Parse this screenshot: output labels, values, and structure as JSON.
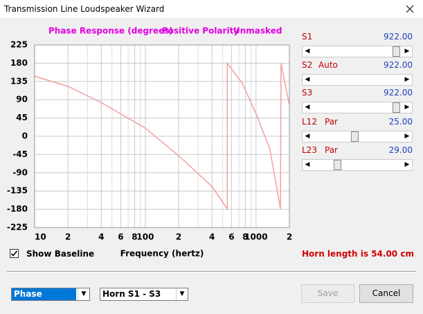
{
  "window": {
    "title": "Transmission Line Loudspeaker Wizard"
  },
  "chart_data": {
    "type": "line",
    "title": "Phase Response (degrees)",
    "annotations": [
      "Positive Polarity",
      "Unmasked"
    ],
    "x_label": "Frequency (hertz)",
    "color": "#f4a3a3",
    "log_x": true,
    "grid": true,
    "x": [
      10,
      20,
      40,
      60,
      100,
      200,
      400,
      550,
      550,
      750,
      1000,
      1330,
      1660,
      1680,
      2000
    ],
    "values": [
      148,
      123,
      83,
      55,
      20,
      -48,
      -124,
      -179,
      180,
      131,
      55,
      -31,
      -179,
      180,
      77
    ],
    "xlim": [
      10,
      2000
    ],
    "xticks": [
      10,
      {
        "value": 20,
        "label": "2"
      },
      {
        "value": 40,
        "label": "4"
      },
      {
        "value": 60,
        "label": "6"
      },
      {
        "value": 80,
        "label": "8"
      },
      100,
      {
        "value": 200,
        "label": "2"
      },
      {
        "value": 400,
        "label": "4"
      },
      {
        "value": 600,
        "label": "6"
      },
      {
        "value": 800,
        "label": "8"
      },
      1000,
      {
        "value": 2000,
        "label": "2"
      }
    ],
    "xminor": [
      30,
      50,
      70,
      90,
      300,
      500,
      700,
      900
    ],
    "ylim": [
      -225,
      225
    ],
    "yticks": [
      225,
      180,
      135,
      90,
      45,
      0,
      -45,
      -90,
      -135,
      -180,
      -225
    ]
  },
  "controls": {
    "sliders": [
      {
        "label": "S1",
        "value": "922.00"
      },
      {
        "label": "S2",
        "mode": "Auto",
        "value": "922.00"
      },
      {
        "label": "S3",
        "value": "922.00"
      },
      {
        "label": "L12",
        "mode": "Par",
        "value": "25.00"
      },
      {
        "label": "L23",
        "mode": "Par",
        "value": "29.00"
      }
    ],
    "show_baseline": {
      "label": "Show Baseline",
      "checked": true
    },
    "status": "Horn length is 54.00 cm",
    "dropdowns": [
      "Phase",
      "Horn S1 - S3"
    ],
    "buttons": [
      "Save",
      "Cancel"
    ]
  }
}
